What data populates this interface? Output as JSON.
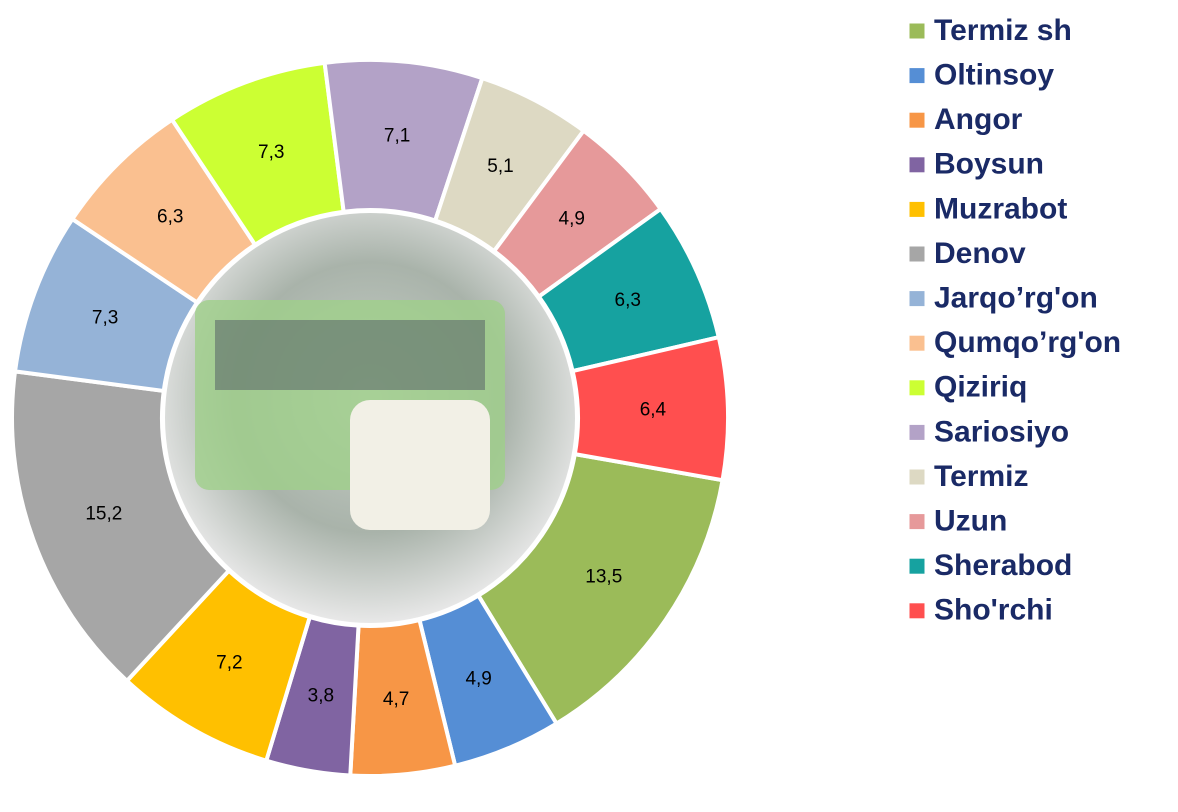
{
  "chart_data": {
    "type": "donut",
    "categories": [
      "Termiz sh",
      "Oltinsoy",
      "Angor",
      "Boysun",
      "Muzrabot",
      "Denov",
      "Jarqo’rg'on",
      "Qumqo’rg'on",
      "Qiziriq",
      "Sariosiyo",
      "Termiz",
      "Uzun",
      "Sherabod",
      "Sho'rchi"
    ],
    "values": [
      13.5,
      4.9,
      4.7,
      3.8,
      7.2,
      15.2,
      7.3,
      6.3,
      7.3,
      7.1,
      5.1,
      4.9,
      6.3,
      6.4
    ],
    "value_labels": [
      "13,5",
      "4,9",
      "4,7",
      "3,8",
      "7,2",
      "15,2",
      "7,3",
      "6,3",
      "7,3",
      "7,1",
      "5,1",
      "4,9",
      "6,3",
      "6,4"
    ],
    "colors": [
      "#9bbb59",
      "#558ed5",
      "#f79646",
      "#8064a2",
      "#ffc000",
      "#a6a6a6",
      "#95b3d7",
      "#fac090",
      "#ccff33",
      "#b3a2c7",
      "#ddd9c3",
      "#e6999a",
      "#16a2a0",
      "#ff4f4f"
    ]
  }
}
